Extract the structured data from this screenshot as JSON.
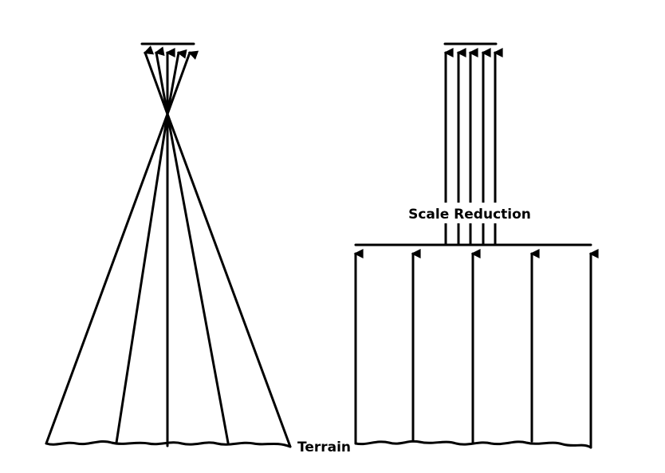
{
  "labels": {
    "scale_reduction": "Scale Reduction",
    "terrain": "Terrain"
  },
  "left_projection": {
    "name": "central-perspective",
    "ray_count": 5
  },
  "right_projection": {
    "name": "orthographic",
    "lower_ray_count": 5,
    "upper_ray_count": 5
  },
  "colors": {
    "line": "#000000",
    "background": "#ffffff"
  }
}
